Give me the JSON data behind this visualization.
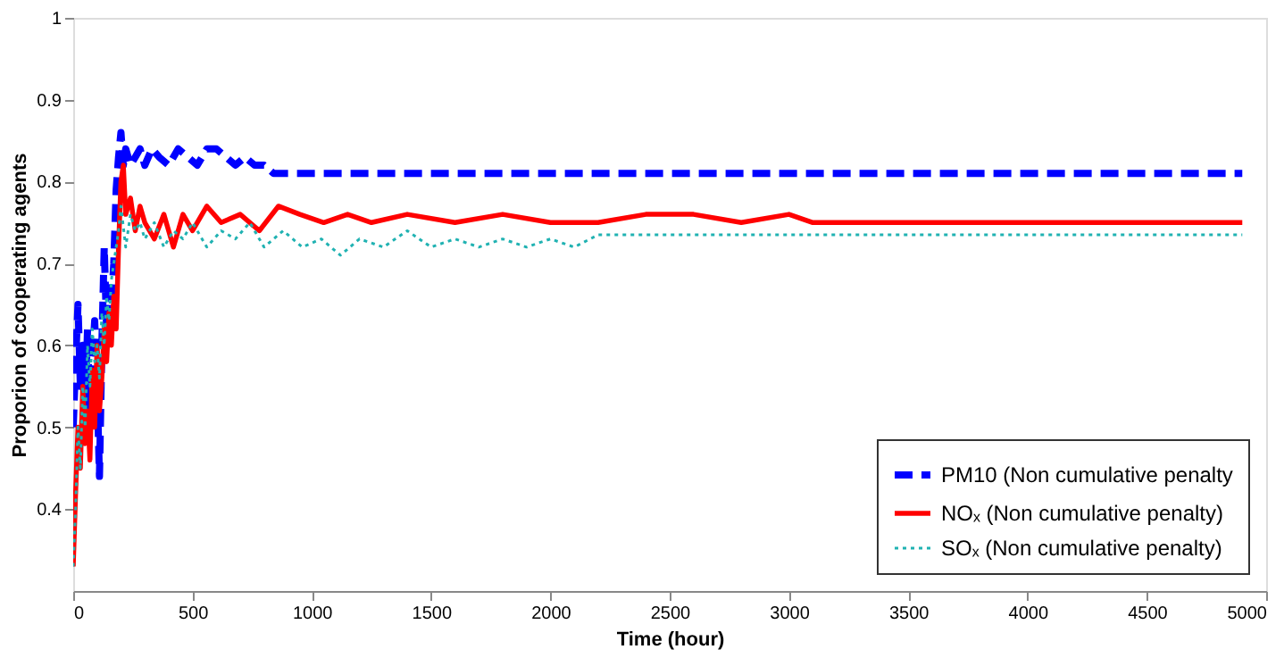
{
  "chart_data": {
    "type": "line",
    "xlabel": "Time (hour)",
    "ylabel": "Proporion of cooperating agents",
    "xlim": [
      0,
      5000
    ],
    "ylim": [
      0.3,
      1
    ],
    "xticks": [
      0,
      500,
      1000,
      1500,
      2000,
      2500,
      3000,
      3500,
      4000,
      4500,
      5000
    ],
    "yticks": [
      0.4,
      0.5,
      0.6,
      0.7,
      0.8,
      0.9,
      1
    ],
    "grid": false,
    "legend": "bottom right",
    "series": [
      {
        "name": "PM10 (Non cumulative penalty",
        "color": "#0000ff",
        "line_style": "dashed",
        "x": [
          0,
          10,
          20,
          30,
          40,
          50,
          60,
          70,
          80,
          90,
          100,
          110,
          120,
          130,
          140,
          150,
          160,
          170,
          180,
          190,
          200,
          210,
          220,
          240,
          260,
          280,
          300,
          330,
          360,
          400,
          440,
          480,
          520,
          560,
          600,
          640,
          680,
          720,
          760,
          800,
          840,
          860,
          900,
          1500,
          2500,
          3500,
          4900
        ],
        "values": [
          0.5,
          0.58,
          0.65,
          0.55,
          0.6,
          0.52,
          0.62,
          0.5,
          0.58,
          0.63,
          0.55,
          0.44,
          0.6,
          0.72,
          0.62,
          0.67,
          0.65,
          0.7,
          0.79,
          0.83,
          0.86,
          0.82,
          0.84,
          0.82,
          0.83,
          0.84,
          0.82,
          0.84,
          0.83,
          0.82,
          0.84,
          0.83,
          0.82,
          0.84,
          0.84,
          0.83,
          0.82,
          0.83,
          0.82,
          0.82,
          0.81,
          0.81,
          0.81,
          0.81,
          0.81,
          0.81,
          0.81
        ]
      },
      {
        "name": "NOₓ (Non cumulative penalty)",
        "color": "#ff0000",
        "line_style": "solid",
        "x": [
          0,
          10,
          20,
          30,
          40,
          50,
          60,
          70,
          80,
          90,
          100,
          110,
          120,
          130,
          140,
          150,
          160,
          170,
          180,
          190,
          200,
          210,
          220,
          240,
          260,
          280,
          300,
          340,
          380,
          420,
          460,
          500,
          560,
          620,
          700,
          780,
          860,
          950,
          1050,
          1150,
          1250,
          1400,
          1600,
          1800,
          2000,
          2200,
          2400,
          2600,
          2800,
          3000,
          3100,
          3200,
          4900
        ],
        "values": [
          0.33,
          0.42,
          0.5,
          0.45,
          0.55,
          0.48,
          0.52,
          0.46,
          0.57,
          0.5,
          0.6,
          0.52,
          0.56,
          0.62,
          0.58,
          0.64,
          0.6,
          0.66,
          0.62,
          0.72,
          0.8,
          0.82,
          0.76,
          0.78,
          0.74,
          0.77,
          0.75,
          0.73,
          0.76,
          0.72,
          0.76,
          0.74,
          0.77,
          0.75,
          0.76,
          0.74,
          0.77,
          0.76,
          0.75,
          0.76,
          0.75,
          0.76,
          0.75,
          0.76,
          0.75,
          0.75,
          0.76,
          0.76,
          0.75,
          0.76,
          0.75,
          0.75,
          0.75
        ]
      },
      {
        "name": "SOₓ (Non cumulative penalty)",
        "color": "#20b2b2",
        "line_style": "dotted",
        "x": [
          0,
          10,
          20,
          30,
          40,
          50,
          60,
          70,
          80,
          90,
          100,
          110,
          120,
          130,
          140,
          150,
          160,
          170,
          180,
          190,
          200,
          220,
          240,
          260,
          280,
          300,
          340,
          380,
          420,
          460,
          500,
          560,
          620,
          680,
          740,
          800,
          880,
          960,
          1040,
          1120,
          1200,
          1300,
          1400,
          1500,
          1600,
          1700,
          1800,
          1900,
          2000,
          2100,
          2200,
          3000,
          4000,
          4900
        ],
        "values": [
          0.33,
          0.4,
          0.5,
          0.45,
          0.55,
          0.5,
          0.6,
          0.55,
          0.62,
          0.58,
          0.6,
          0.56,
          0.64,
          0.6,
          0.66,
          0.63,
          0.68,
          0.7,
          0.72,
          0.74,
          0.77,
          0.72,
          0.76,
          0.74,
          0.75,
          0.73,
          0.75,
          0.72,
          0.74,
          0.73,
          0.75,
          0.72,
          0.74,
          0.73,
          0.75,
          0.72,
          0.74,
          0.72,
          0.73,
          0.71,
          0.73,
          0.72,
          0.74,
          0.72,
          0.73,
          0.72,
          0.73,
          0.72,
          0.73,
          0.72,
          0.735,
          0.735,
          0.735,
          0.735
        ]
      }
    ]
  }
}
